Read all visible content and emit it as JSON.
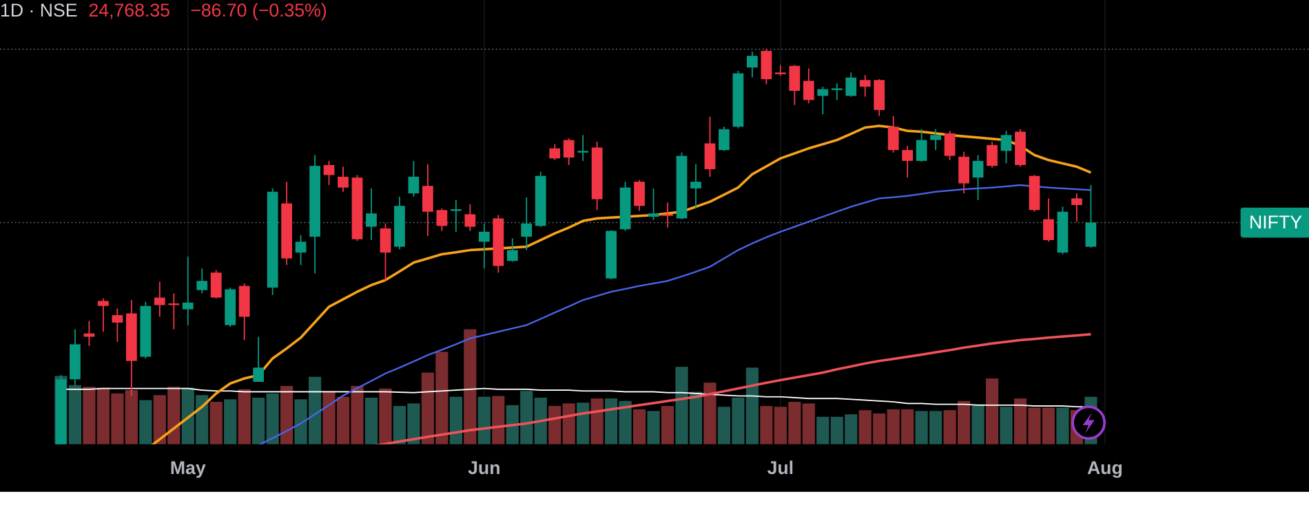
{
  "chart_data": {
    "type": "candlestick",
    "title": "1D · NSE",
    "price_label": "24,768.35",
    "change_label": "−86.70 (−0.35%)",
    "symbol_label": "NIFTY",
    "categories": [
      null,
      null,
      null,
      null,
      null,
      null,
      null,
      null,
      null,
      "May",
      null,
      null,
      null,
      null,
      null,
      null,
      null,
      null,
      null,
      null,
      null,
      null,
      null,
      null,
      null,
      null,
      null,
      null,
      null,
      null,
      "Jun",
      null,
      null,
      null,
      null,
      null,
      null,
      null,
      null,
      null,
      null,
      null,
      null,
      null,
      null,
      null,
      null,
      null,
      null,
      null,
      null,
      "Jul",
      null,
      null,
      null,
      null,
      null,
      null,
      null,
      null,
      null,
      null,
      null,
      null,
      null,
      null,
      null,
      null,
      null,
      null,
      null,
      null,
      null,
      null,
      "Aug"
    ],
    "open": [
      23400,
      23825,
      24100,
      24295,
      24210,
      24220,
      23960,
      24315,
      24280,
      24245,
      24360,
      24465,
      24150,
      24385,
      23810,
      24375,
      24880,
      24585,
      24680,
      25110,
      25040,
      25035,
      24740,
      24730,
      24620,
      24940,
      24985,
      24840,
      24835,
      24815,
      24650,
      24790,
      24535,
      24680,
      24745,
      25210,
      25260,
      25185,
      25215,
      24430,
      24725,
      25010,
      24800,
      24815,
      24790,
      24970,
      25240,
      25200,
      25340,
      25695,
      25795,
      25665,
      25705,
      25615,
      25525,
      25560,
      25525,
      25620,
      25620,
      25340,
      25200,
      25135,
      25260,
      25300,
      25160,
      25035,
      25230,
      25195,
      25310,
      25045,
      24785,
      24585,
      24910,
      24620,
      null
    ],
    "high": [
      23850,
      24125,
      24175,
      24310,
      24250,
      24300,
      24290,
      24410,
      24340,
      24560,
      24490,
      24480,
      24375,
      24400,
      24080,
      24970,
      25010,
      24690,
      25170,
      25135,
      25100,
      25050,
      24970,
      24760,
      24920,
      25135,
      25115,
      24850,
      24900,
      24875,
      24760,
      24810,
      24670,
      24915,
      25070,
      25235,
      25270,
      25290,
      25250,
      24720,
      25010,
      25020,
      24970,
      24885,
      25185,
      25115,
      25400,
      25340,
      25675,
      25790,
      25805,
      25710,
      25710,
      25690,
      25580,
      25600,
      25665,
      25650,
      25625,
      25405,
      25225,
      25325,
      25325,
      25315,
      25190,
      25170,
      25250,
      25315,
      25325,
      25050,
      24910,
      24860,
      24940,
      24990,
      null
    ],
    "low": [
      23375,
      23790,
      24025,
      24110,
      24050,
      23725,
      23950,
      24200,
      24125,
      24150,
      24340,
      24310,
      24140,
      24060,
      23810,
      24330,
      24510,
      24510,
      24460,
      24990,
      24950,
      24655,
      24660,
      24415,
      24605,
      24920,
      24685,
      24715,
      24710,
      24715,
      24490,
      24465,
      24530,
      24600,
      24740,
      25140,
      25110,
      25135,
      24840,
      24425,
      24715,
      24835,
      24780,
      24735,
      24785,
      24850,
      25040,
      25195,
      25330,
      25635,
      25595,
      25645,
      25470,
      25480,
      25415,
      25500,
      25520,
      25520,
      25405,
      25185,
      25035,
      25130,
      25200,
      25140,
      24940,
      24900,
      25095,
      25120,
      25100,
      24830,
      24650,
      24575,
      24770,
      24615,
      null
    ],
    "close": [
      23825,
      24035,
      24080,
      24265,
      24165,
      23935,
      24265,
      24270,
      24270,
      24285,
      24415,
      24315,
      24365,
      24200,
      23895,
      24950,
      24550,
      24650,
      25105,
      25050,
      24975,
      24665,
      24820,
      24585,
      24865,
      25040,
      24830,
      24745,
      24845,
      24740,
      24710,
      24505,
      24600,
      24760,
      25045,
      25150,
      25155,
      25195,
      24905,
      24715,
      24975,
      24865,
      24820,
      24805,
      25165,
      25010,
      25085,
      25325,
      25660,
      25765,
      25625,
      25655,
      25555,
      25500,
      25565,
      25570,
      25635,
      25580,
      25440,
      25200,
      25135,
      25260,
      25290,
      25165,
      25000,
      25135,
      25105,
      25290,
      25110,
      24840,
      24660,
      24830,
      24870,
      24765,
      null
    ],
    "volume": [
      82,
      71,
      69,
      68,
      61,
      65,
      53,
      59,
      69,
      68,
      59,
      51,
      54,
      66,
      56,
      61,
      70,
      54,
      81,
      64,
      57,
      70,
      56,
      67,
      46,
      49,
      86,
      111,
      57,
      138,
      57,
      58,
      47,
      64,
      56,
      46,
      49,
      50,
      55,
      55,
      52,
      42,
      40,
      46,
      93,
      63,
      74,
      45,
      56,
      92,
      46,
      45,
      51,
      49,
      33,
      33,
      36,
      41,
      37,
      42,
      42,
      40,
      40,
      41,
      52,
      48,
      79,
      45,
      55,
      44,
      44,
      44,
      41,
      57,
      null
    ],
    "overlays": [
      {
        "color": "#f7a21b",
        "width": 3,
        "values": [
          null,
          null,
          null,
          null,
          null,
          null,
          23400,
          23465,
          23530,
          23595,
          23660,
          23740,
          23800,
          23830,
          23850,
          23950,
          24010,
          24075,
          24167,
          24260,
          24305,
          24350,
          24390,
          24420,
          24472,
          24525,
          24550,
          24575,
          24587,
          24600,
          24605,
          24610,
          24615,
          24620,
          24660,
          24700,
          24735,
          24775,
          24790,
          24795,
          24800,
          24805,
          24810,
          24820,
          24830,
          24860,
          24890,
          24932,
          24975,
          25055,
          25102,
          25150,
          25180,
          25210,
          25235,
          25260,
          25297,
          25335,
          25345,
          25335,
          25315,
          25310,
          25300,
          25290,
          25282,
          25275,
          25267,
          25260,
          25225,
          25170,
          25140,
          25120,
          25100,
          25065,
          null
        ]
      },
      {
        "color": "#4a63e8",
        "width": 2,
        "values": [
          null,
          null,
          null,
          null,
          null,
          null,
          null,
          null,
          null,
          null,
          null,
          null,
          null,
          null,
          23430,
          23472,
          23515,
          23560,
          23615,
          23670,
          23727,
          23772,
          23815,
          23860,
          23895,
          23932,
          23970,
          24002,
          24035,
          24070,
          24090,
          24110,
          24130,
          24150,
          24187,
          24225,
          24262,
          24300,
          24325,
          24350,
          24367,
          24385,
          24400,
          24415,
          24442,
          24470,
          24500,
          24550,
          24600,
          24640,
          24677,
          24710,
          24740,
          24770,
          24800,
          24830,
          24860,
          24885,
          24910,
          24917,
          24925,
          24937,
          24950,
          24957,
          24965,
          24970,
          24975,
          24982,
          24990,
          24982,
          24975,
          24970,
          24965,
          24960,
          null
        ]
      },
      {
        "color": "#f0525a",
        "width": 3,
        "values": [
          null,
          null,
          null,
          null,
          null,
          null,
          null,
          null,
          null,
          null,
          null,
          null,
          null,
          null,
          null,
          null,
          null,
          null,
          null,
          null,
          null,
          null,
          23425,
          23437,
          23452,
          23466,
          23480,
          23493,
          23506,
          23520,
          23530,
          23540,
          23550,
          23560,
          23575,
          23590,
          23605,
          23620,
          23632,
          23645,
          23657,
          23670,
          23682,
          23695,
          23707,
          23720,
          23736,
          23753,
          23770,
          23787,
          23804,
          23820,
          23835,
          23850,
          23865,
          23885,
          23902,
          23920,
          23935,
          23947,
          23960,
          23973,
          23987,
          24000,
          24015,
          24027,
          24040,
          24050,
          24060,
          24067,
          24075,
          24082,
          24088,
          24095,
          null
        ]
      }
    ],
    "volume_ma": {
      "color": "#ffffff",
      "values": [
        66,
        66,
        66,
        67,
        67,
        67,
        67,
        67,
        67,
        67,
        65,
        64,
        64,
        63,
        63,
        63,
        63,
        63,
        63,
        63,
        63,
        63,
        63,
        63,
        62.5,
        62,
        63,
        64,
        65,
        66,
        67,
        66,
        66,
        66,
        65,
        65,
        65,
        64,
        64,
        64,
        63,
        63,
        63,
        62,
        62,
        61,
        60,
        59,
        58,
        58,
        57,
        57,
        56,
        55,
        55,
        55,
        54,
        53,
        52,
        51,
        49,
        49,
        48,
        48,
        48,
        47,
        47,
        47,
        47,
        46,
        46,
        46,
        45,
        45,
        null
      ]
    },
    "ylim": [
      23435,
      26100
    ],
    "volume_lim": [
      0,
      180
    ],
    "up_color": "#089981",
    "down_color": "#f23645",
    "volume_up_color": "#1f5a52",
    "volume_down_color": "#7b2c2f",
    "grid": true
  }
}
